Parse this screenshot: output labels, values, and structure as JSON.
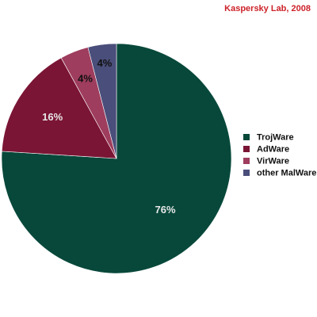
{
  "credit": "Kaspersky Lab, 2008",
  "chart_data": {
    "type": "pie",
    "title": "",
    "start_angle_deg": 0,
    "direction": "clockwise",
    "legend_position": "right",
    "slices": [
      {
        "name": "TrojWare",
        "value": 76,
        "label": "76%",
        "color": "#07483a",
        "label_color": "#e8e8e8"
      },
      {
        "name": "AdWare",
        "value": 16,
        "label": "16%",
        "color": "#7b1535",
        "label_color": "#e8e8e8"
      },
      {
        "name": "VirWare",
        "value": 4,
        "label": "4%",
        "color": "#9e3d5d",
        "label_color": "#111111"
      },
      {
        "name": "other MalWare",
        "value": 4,
        "label": "4%",
        "color": "#4a4e7a",
        "label_color": "#111111"
      }
    ]
  }
}
